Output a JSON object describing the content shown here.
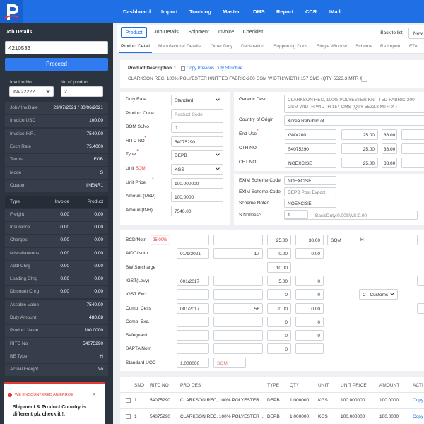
{
  "nav": {
    "items": [
      "Dashboard",
      "Import",
      "Tracking",
      "Master",
      "DMS",
      "Report",
      "CCR",
      "IMail"
    ]
  },
  "sidebar": {
    "title": "Job Details",
    "job_no": "4210533",
    "proceed": "Proceed",
    "invoice_no_label": "Invoice No",
    "no_of_product_label": "No of product",
    "invoice_no": "INV22222",
    "no_of_product": "2",
    "info": [
      [
        "Job / Inv.Date",
        "23/07/2021 / 30/06/2021"
      ],
      [
        "Invoice USD",
        "100.00"
      ],
      [
        "Invoice INR.",
        "7540.00"
      ],
      [
        "Exch Rate",
        "75.4000"
      ],
      [
        "Terms",
        "FOB"
      ],
      [
        "Mode",
        "S"
      ],
      [
        "Custom",
        "INENR1"
      ]
    ],
    "charges_header": [
      "Type",
      "Invoice",
      "Product"
    ],
    "charges": [
      [
        "Freight",
        "0.00",
        "0.00"
      ],
      [
        "Insurance",
        "0.00",
        "0.00"
      ],
      [
        "Charges",
        "0.00",
        "0.00"
      ],
      [
        "Miscellaneous",
        "0.00",
        "0.00"
      ],
      [
        "Addl Chrg",
        "0.00",
        "0.00"
      ],
      [
        "Loading Chrg",
        "0.00",
        "0.00"
      ],
      [
        "Discount Chrg",
        "0.00",
        "0.00"
      ]
    ],
    "summary": [
      [
        "Assable Value",
        "7540.00"
      ],
      [
        "Duty Amount",
        "480.68"
      ],
      [
        "Product Value",
        "100.0000"
      ],
      [
        "RITC No",
        "54075290"
      ],
      [
        "BE Type",
        "H"
      ],
      [
        "Actual Freight",
        "No"
      ]
    ]
  },
  "error": {
    "title": "WE ENCOUNTERED AN ERROE",
    "close": "×",
    "message": "Shipment & Product Country is different plz check it !."
  },
  "tabs": {
    "main": [
      "Product",
      "Job Details",
      "Shipment",
      "Invoice",
      "Checklist"
    ],
    "back": "Back to list",
    "new": "New",
    "sub": [
      "Product Detail",
      "Manufacturer Details",
      "Other Duty",
      "Declaration",
      "Supporting Docs",
      "Single Window",
      "Scheme",
      "Re Import",
      "FTA"
    ]
  },
  "product_description": {
    "label": "Product Description",
    "mark": "*",
    "copy": "Copy Previous Duty Structure",
    "text": "CLARKSON REC, 100% POLYESTER KNITTED FABRIC-200 GSM WIDTH:WIDTH 157 CMS (QTY 5523.3 MTR X )"
  },
  "form": [
    {
      "label": "Duty Rate",
      "value": "Standard"
    },
    {
      "label": "Product Code",
      "placeholder": "Product Code"
    },
    {
      "label": "BOM SLNo",
      "value": "0"
    },
    {
      "label": "RITC NO",
      "mark": "*",
      "value": "54075290"
    },
    {
      "label": "Type",
      "mark": "*",
      "value": "DEPB"
    },
    {
      "label": "Unit",
      "note": "SQM",
      "value": "KGS"
    },
    {
      "label": "Unit Price",
      "mark": "*",
      "value": "100.000000"
    },
    {
      "label": "Amount (USD)",
      "value": "100.0000"
    },
    {
      "label": "Amount(INR)",
      "value": "7540.00"
    }
  ],
  "classification": {
    "generic_desc_label": "Generic Desc",
    "generic_desc": "CLARKSON REC, 100% POLYESTER KNITTED FABRIC-200 GSM WIDTH:WIDTH 157 CMS (QTY 5523.3 MTR X )",
    "country_label": "Country of Origin",
    "country": "Korea Rebublic of",
    "rows": [
      {
        "label": "End Use",
        "mark": "*",
        "value": "GNX200",
        "rate": "25.00",
        "rate2": "38.00"
      },
      {
        "label": "CTH NO",
        "value": "54075290",
        "rate": "25.00",
        "rate2": "38.00"
      },
      {
        "label": "CET NO",
        "value": "NOEXCISE",
        "rate": "25.00",
        "rate2": "38.00"
      }
    ]
  },
  "scheme": [
    {
      "label": "EXIM Scheme Code",
      "value": "NOEXCISE"
    },
    {
      "label": "EXIM Scheme Code",
      "value": "DEPB Post Export"
    },
    {
      "label": "Scheme Noten",
      "value": "NOEXCISE"
    },
    {
      "label": "S.No/Desc",
      "value": "1",
      "extra": "BasicDuty:0.00SWS:0.00"
    }
  ],
  "duty": [
    {
      "label": "BCD/Notn",
      "note": "25.00%",
      "pct": "25.00",
      "amt": "38.00",
      "unit": "SQM",
      "extra": "H"
    },
    {
      "label": "AIDC/Notn",
      "notn": "01/1/2021",
      "rate": "17",
      "pct": "0.00",
      "amt": "0.00"
    },
    {
      "label": "SW Surcharge",
      "pct": "10.00"
    },
    {
      "label": "IGST(Levy)",
      "notn": "001/2017",
      "pct": "5.00",
      "amt": "0"
    },
    {
      "label": "IGST Exc",
      "pct": "0",
      "amt": "0",
      "select": "C - Customs"
    },
    {
      "label": "Comp. Cess",
      "notn": "001/2017",
      "rate": "56",
      "pct": "0.00",
      "amt": "0.00"
    },
    {
      "label": "Comp. Exc.",
      "pct": "0",
      "amt": "0"
    },
    {
      "label": "Safeguard",
      "pct": "0",
      "amt": "0"
    },
    {
      "label": "SAPTA Notn",
      "pct": "0"
    },
    {
      "label": "Standard UQC",
      "notn": "1.000000",
      "placeholder": "SQM"
    }
  ],
  "table": {
    "columns": [
      "SNO",
      "RITC NO",
      "PRO DES",
      "TYPE",
      "QTY",
      "UNIT",
      "UNIT PRICE",
      "AMOUNT",
      "ACTI"
    ],
    "rows": [
      [
        "1",
        "54075290",
        "CLARKSON REC, 100% POLYESTER ...",
        "DEPB",
        "1.000000",
        "KGS",
        "100.000000",
        "100.0000",
        "Copy"
      ],
      [
        "1",
        "54075290",
        "CLARKSON REC, 100% POLYESTER ...",
        "DEPB",
        "1.000000",
        "KGS",
        "100.000000",
        "100.0000",
        "Copy"
      ]
    ]
  }
}
